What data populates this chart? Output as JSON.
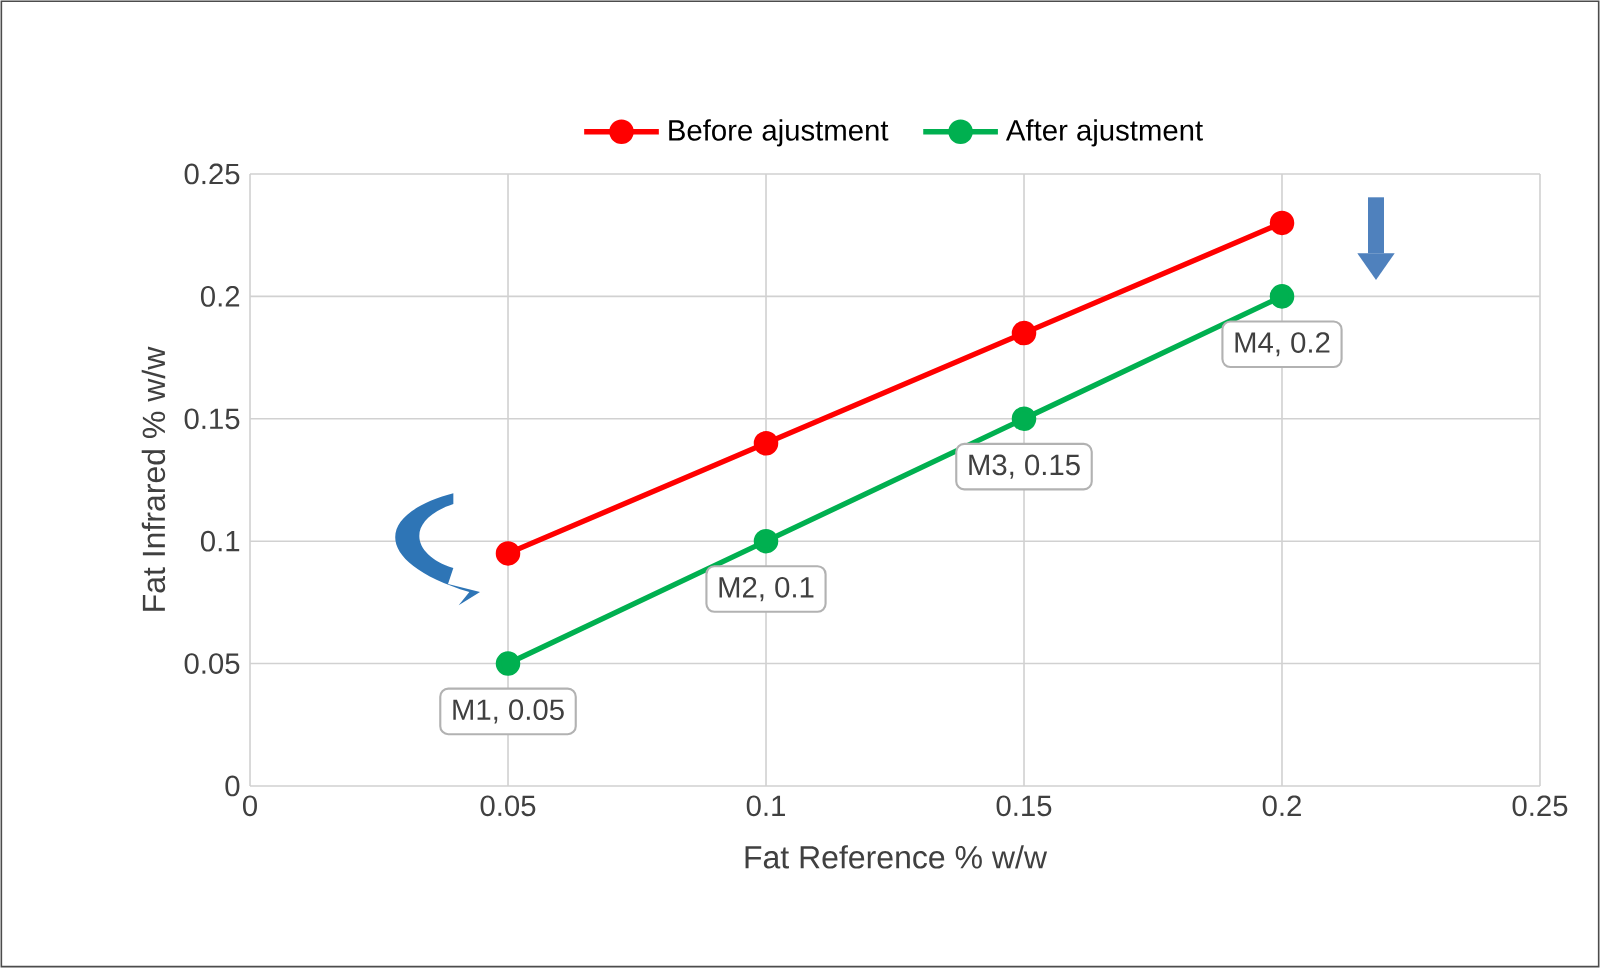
{
  "chart_data": {
    "type": "line",
    "xlabel": "Fat Reference % w/w",
    "ylabel": "Fat Infrared % w/w",
    "x": [
      0.05,
      0.1,
      0.15,
      0.2
    ],
    "series": [
      {
        "name": "Before ajustment",
        "color": "#ff0000",
        "values": [
          0.095,
          0.14,
          0.185,
          0.23
        ]
      },
      {
        "name": "After ajustment",
        "color": "#00b050",
        "values": [
          0.05,
          0.1,
          0.15,
          0.2
        ]
      }
    ],
    "xlim": [
      0,
      0.25
    ],
    "xticks": [
      0,
      0.05,
      0.1,
      0.15,
      0.2,
      0.25
    ],
    "ylim": [
      0,
      0.25
    ],
    "yticks": [
      0,
      0.05,
      0.1,
      0.15,
      0.2,
      0.25
    ],
    "annotations": [
      {
        "text": "M1, 0.05",
        "x": 0.05,
        "y": 0.05
      },
      {
        "text": "M2, 0.1",
        "x": 0.1,
        "y": 0.1
      },
      {
        "text": "M3, 0.15",
        "x": 0.15,
        "y": 0.15
      },
      {
        "text": "M4, 0.2",
        "x": 0.2,
        "y": 0.2
      }
    ],
    "grid": true,
    "legend": "top",
    "marker": "circle",
    "line_style": "solid"
  }
}
